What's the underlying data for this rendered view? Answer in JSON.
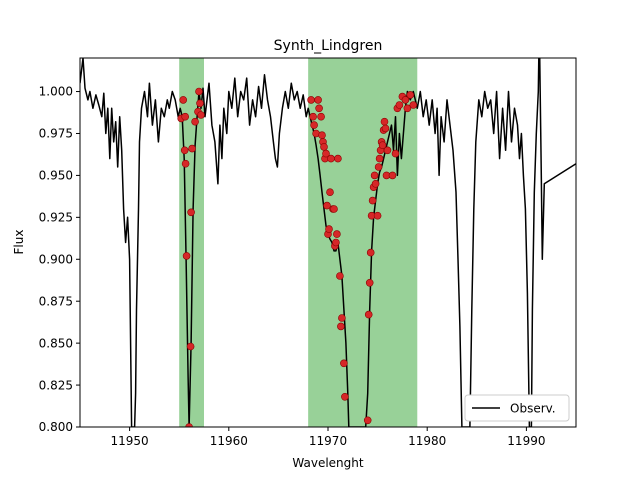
{
  "chart_data": {
    "type": "line",
    "title": "Synth_Lindgren",
    "xlabel": "Wavelenght",
    "ylabel": "Flux",
    "xlim": [
      11945,
      11995
    ],
    "ylim": [
      0.8,
      1.02
    ],
    "x_ticks": [
      11950,
      11960,
      11970,
      11980,
      11990
    ],
    "x_tick_labels": [
      "11950",
      "11960",
      "11970",
      "11980",
      "11990"
    ],
    "y_ticks": [
      0.8,
      0.825,
      0.85,
      0.875,
      0.9,
      0.925,
      0.95,
      0.975,
      1.0
    ],
    "y_tick_labels": [
      "0.800",
      "0.825",
      "0.850",
      "0.875",
      "0.900",
      "0.925",
      "0.950",
      "0.975",
      "1.000"
    ],
    "grid": false,
    "legend": {
      "position": "lower right",
      "entries": [
        "Observ."
      ]
    },
    "colors": {
      "line": "#000000",
      "points": "#d62728",
      "points_edge": "#8b0000",
      "band": "#98d198"
    },
    "highlight_bands": [
      {
        "x_start": 11955.0,
        "x_end": 11957.5
      },
      {
        "x_start": 11968.0,
        "x_end": 11979.0
      }
    ],
    "series": [
      {
        "name": "Observ.",
        "kind": "line",
        "points": [
          [
            11945.0,
            1.005
          ],
          [
            11945.3,
            1.02
          ],
          [
            11945.5,
            1.002
          ],
          [
            11945.8,
            0.995
          ],
          [
            11946.0,
            1.0
          ],
          [
            11946.3,
            0.99
          ],
          [
            11946.6,
            0.998
          ],
          [
            11946.9,
            0.992
          ],
          [
            11947.2,
            0.985
          ],
          [
            11947.4,
            0.999
          ],
          [
            11947.6,
            0.975
          ],
          [
            11947.8,
            0.99
          ],
          [
            11948.0,
            0.96
          ],
          [
            11948.2,
            0.99
          ],
          [
            11948.4,
            0.97
          ],
          [
            11948.6,
            0.982
          ],
          [
            11948.8,
            0.955
          ],
          [
            11949.0,
            0.985
          ],
          [
            11949.2,
            0.965
          ],
          [
            11949.4,
            0.93
          ],
          [
            11949.6,
            0.91
          ],
          [
            11949.8,
            0.925
          ],
          [
            11950.0,
            0.9
          ],
          [
            11950.1,
            0.85
          ],
          [
            11950.2,
            0.8
          ],
          [
            11950.5,
            0.8
          ],
          [
            11950.6,
            0.82
          ],
          [
            11950.7,
            0.87
          ],
          [
            11950.9,
            0.93
          ],
          [
            11951.0,
            0.97
          ],
          [
            11951.2,
            0.99
          ],
          [
            11951.5,
            1.0
          ],
          [
            11951.8,
            0.985
          ],
          [
            11952.0,
            1.005
          ],
          [
            11952.3,
            0.98
          ],
          [
            11952.6,
            0.995
          ],
          [
            11952.9,
            0.97
          ],
          [
            11953.2,
            0.99
          ],
          [
            11953.5,
            0.985
          ],
          [
            11953.8,
            0.995
          ],
          [
            11954.0,
            0.99
          ],
          [
            11954.3,
            1.0
          ],
          [
            11954.6,
            0.995
          ],
          [
            11954.9,
            0.985
          ],
          [
            11955.1,
            0.99
          ],
          [
            11955.3,
            0.985
          ],
          [
            11955.5,
            0.96
          ],
          [
            11955.7,
            0.9
          ],
          [
            11955.9,
            0.83
          ],
          [
            11956.0,
            0.8
          ],
          [
            11956.2,
            0.85
          ],
          [
            11956.4,
            0.93
          ],
          [
            11956.6,
            0.968
          ],
          [
            11956.8,
            0.985
          ],
          [
            11957.0,
            1.0
          ],
          [
            11957.2,
            0.99
          ],
          [
            11957.4,
            1.002
          ],
          [
            11957.6,
            0.985
          ],
          [
            11957.8,
            0.995
          ],
          [
            11958.0,
            1.005
          ],
          [
            11958.3,
            0.98
          ],
          [
            11958.6,
            0.97
          ],
          [
            11958.9,
            0.945
          ],
          [
            11959.1,
            0.98
          ],
          [
            11959.3,
            0.96
          ],
          [
            11959.5,
            0.99
          ],
          [
            11959.8,
            0.975
          ],
          [
            11960.0,
            1.0
          ],
          [
            11960.3,
            0.99
          ],
          [
            11960.6,
            1.008
          ],
          [
            11960.9,
            0.985
          ],
          [
            11961.2,
            1.0
          ],
          [
            11961.5,
            0.995
          ],
          [
            11961.8,
            1.008
          ],
          [
            11962.1,
            0.98
          ],
          [
            11962.4,
            0.995
          ],
          [
            11962.7,
            0.985
          ],
          [
            11963.0,
            1.003
          ],
          [
            11963.3,
            0.99
          ],
          [
            11963.6,
            1.01
          ],
          [
            11963.9,
            0.995
          ],
          [
            11964.2,
            0.985
          ],
          [
            11964.5,
            0.97
          ],
          [
            11964.7,
            0.96
          ],
          [
            11964.9,
            0.955
          ],
          [
            11965.1,
            0.975
          ],
          [
            11965.4,
            0.99
          ],
          [
            11965.7,
            1.0
          ],
          [
            11966.0,
            0.99
          ],
          [
            11966.3,
            1.005
          ],
          [
            11966.6,
            0.995
          ],
          [
            11966.9,
            1.0
          ],
          [
            11967.2,
            0.99
          ],
          [
            11967.5,
            0.998
          ],
          [
            11967.8,
            0.985
          ],
          [
            11968.0,
            0.99
          ],
          [
            11968.2,
            0.985
          ],
          [
            11968.4,
            0.98
          ],
          [
            11968.6,
            0.975
          ],
          [
            11968.8,
            0.968
          ],
          [
            11969.0,
            0.96
          ],
          [
            11969.2,
            0.95
          ],
          [
            11969.4,
            0.94
          ],
          [
            11969.6,
            0.93
          ],
          [
            11969.8,
            0.92
          ],
          [
            11970.0,
            0.915
          ],
          [
            11970.2,
            0.912
          ],
          [
            11970.4,
            0.91
          ],
          [
            11970.6,
            0.905
          ],
          [
            11970.8,
            0.905
          ],
          [
            11971.0,
            0.91
          ],
          [
            11971.2,
            0.9
          ],
          [
            11971.4,
            0.89
          ],
          [
            11971.6,
            0.87
          ],
          [
            11971.8,
            0.85
          ],
          [
            11972.0,
            0.82
          ],
          [
            11972.1,
            0.8
          ],
          [
            11973.8,
            0.8
          ],
          [
            11974.0,
            0.82
          ],
          [
            11974.2,
            0.87
          ],
          [
            11974.4,
            0.905
          ],
          [
            11974.6,
            0.925
          ],
          [
            11974.8,
            0.935
          ],
          [
            11975.0,
            0.945
          ],
          [
            11975.2,
            0.952
          ],
          [
            11975.4,
            0.955
          ],
          [
            11975.6,
            0.96
          ],
          [
            11975.8,
            0.965
          ],
          [
            11976.0,
            0.97
          ],
          [
            11976.2,
            0.975
          ],
          [
            11976.4,
            0.98
          ],
          [
            11976.6,
            0.965
          ],
          [
            11976.8,
            0.985
          ],
          [
            11977.0,
            0.95
          ],
          [
            11977.2,
            0.975
          ],
          [
            11977.4,
            0.96
          ],
          [
            11977.6,
            0.975
          ],
          [
            11977.8,
            0.99
          ],
          [
            11978.0,
            1.0
          ],
          [
            11978.3,
            0.995
          ],
          [
            11978.6,
            1.0
          ],
          [
            11979.0,
            0.99
          ],
          [
            11979.3,
            1.0
          ],
          [
            11979.6,
            0.985
          ],
          [
            11979.9,
            0.995
          ],
          [
            11980.2,
            0.98
          ],
          [
            11980.5,
            0.995
          ],
          [
            11980.8,
            0.975
          ],
          [
            11981.0,
            0.99
          ],
          [
            11981.2,
            0.95
          ],
          [
            11981.4,
            0.985
          ],
          [
            11981.7,
            0.97
          ],
          [
            11982.0,
            0.995
          ],
          [
            11982.3,
            0.98
          ],
          [
            11982.6,
            0.965
          ],
          [
            11982.9,
            0.94
          ],
          [
            11983.1,
            0.9
          ],
          [
            11983.3,
            0.86
          ],
          [
            11983.5,
            0.8
          ],
          [
            11984.3,
            0.8
          ],
          [
            11984.5,
            0.87
          ],
          [
            11984.7,
            0.93
          ],
          [
            11984.9,
            0.97
          ],
          [
            11985.2,
            0.995
          ],
          [
            11985.5,
            0.985
          ],
          [
            11985.8,
            1.0
          ],
          [
            11986.1,
            0.99
          ],
          [
            11986.4,
            0.995
          ],
          [
            11986.7,
            0.975
          ],
          [
            11987.0,
            1.0
          ],
          [
            11987.3,
            0.96
          ],
          [
            11987.6,
            0.99
          ],
          [
            11987.9,
            0.965
          ],
          [
            11988.2,
            1.0
          ],
          [
            11988.5,
            0.97
          ],
          [
            11988.8,
            0.99
          ],
          [
            11989.1,
            0.98
          ],
          [
            11989.3,
            0.96
          ],
          [
            11989.5,
            0.975
          ],
          [
            11989.7,
            0.95
          ],
          [
            11989.9,
            0.93
          ],
          [
            11990.1,
            0.88
          ],
          [
            11990.3,
            0.8
          ],
          [
            11990.5,
            0.8
          ],
          [
            11990.6,
            0.87
          ],
          [
            11990.8,
            0.94
          ],
          [
            11991.0,
            0.975
          ],
          [
            11991.2,
            1.0
          ],
          [
            11991.3,
            1.04
          ],
          [
            11991.5,
            0.95
          ],
          [
            11991.6,
            0.9
          ],
          [
            11991.8,
            0.945
          ],
          [
            11995.0,
            0.957
          ]
        ]
      },
      {
        "kind": "scatter",
        "points": [
          [
            11955.2,
            0.984
          ],
          [
            11955.4,
            0.995
          ],
          [
            11955.6,
            0.985
          ],
          [
            11955.55,
            0.965
          ],
          [
            11955.65,
            0.957
          ],
          [
            11955.75,
            0.902
          ],
          [
            11956.0,
            0.8
          ],
          [
            11956.15,
            0.848
          ],
          [
            11956.2,
            0.928
          ],
          [
            11956.3,
            0.966
          ],
          [
            11956.6,
            0.982
          ],
          [
            11956.9,
            0.988
          ],
          [
            11957.0,
            1.0
          ],
          [
            11957.1,
            0.993
          ],
          [
            11957.2,
            0.986
          ],
          [
            11968.3,
            0.995
          ],
          [
            11968.5,
            0.985
          ],
          [
            11968.6,
            0.98
          ],
          [
            11968.8,
            0.975
          ],
          [
            11969.0,
            0.995
          ],
          [
            11969.1,
            0.99
          ],
          [
            11969.3,
            0.985
          ],
          [
            11969.4,
            0.974
          ],
          [
            11969.5,
            0.97
          ],
          [
            11969.6,
            0.967
          ],
          [
            11969.7,
            0.96
          ],
          [
            11969.8,
            0.963
          ],
          [
            11969.9,
            0.932
          ],
          [
            11970.0,
            0.915
          ],
          [
            11970.1,
            0.918
          ],
          [
            11970.2,
            0.94
          ],
          [
            11970.3,
            0.96
          ],
          [
            11970.5,
            0.93
          ],
          [
            11970.6,
            0.93
          ],
          [
            11970.7,
            0.908
          ],
          [
            11970.8,
            0.91
          ],
          [
            11970.9,
            0.915
          ],
          [
            11971.0,
            0.96
          ],
          [
            11971.2,
            0.89
          ],
          [
            11971.3,
            0.86
          ],
          [
            11971.4,
            0.865
          ],
          [
            11971.6,
            0.838
          ],
          [
            11971.7,
            0.818
          ],
          [
            11974.0,
            0.804
          ],
          [
            11974.1,
            0.867
          ],
          [
            11974.2,
            0.886
          ],
          [
            11974.3,
            0.904
          ],
          [
            11974.4,
            0.926
          ],
          [
            11974.5,
            0.935
          ],
          [
            11974.6,
            0.943
          ],
          [
            11974.7,
            0.95
          ],
          [
            11974.8,
            0.945
          ],
          [
            11975.0,
            0.926
          ],
          [
            11975.1,
            0.955
          ],
          [
            11975.2,
            0.96
          ],
          [
            11975.3,
            0.965
          ],
          [
            11975.4,
            0.97
          ],
          [
            11975.5,
            0.968
          ],
          [
            11975.6,
            0.977
          ],
          [
            11975.7,
            0.982
          ],
          [
            11975.8,
            0.978
          ],
          [
            11975.9,
            0.95
          ],
          [
            11976.0,
            0.965
          ],
          [
            11976.5,
            0.95
          ],
          [
            11976.8,
            0.963
          ],
          [
            11977.0,
            0.99
          ],
          [
            11977.2,
            0.992
          ],
          [
            11977.5,
            0.997
          ],
          [
            11977.8,
            0.995
          ],
          [
            11978.0,
            0.99
          ],
          [
            11978.3,
            0.998
          ],
          [
            11978.6,
            0.992
          ]
        ]
      }
    ]
  }
}
